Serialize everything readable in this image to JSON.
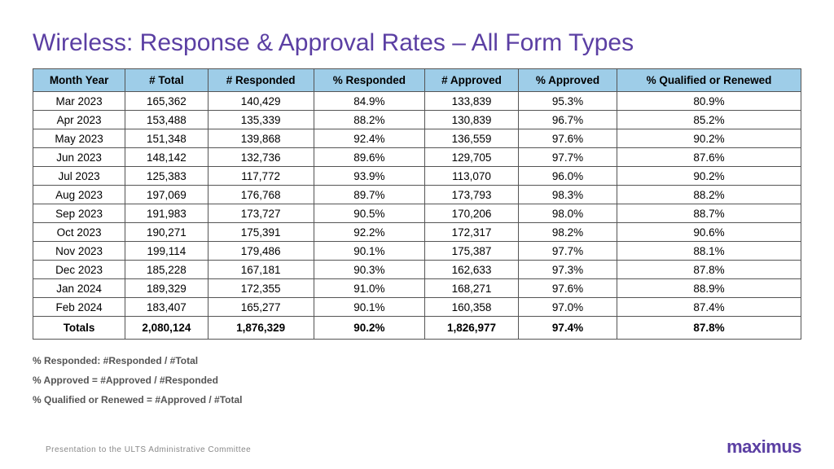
{
  "title": "Wireless: Response & Approval Rates – All Form Types",
  "title_color": "#5b3fa3",
  "table": {
    "header_bg": "#9ecde8",
    "columns": [
      "Month Year",
      "# Total",
      "# Responded",
      "% Responded",
      "# Approved",
      "% Approved",
      "% Qualified or Renewed"
    ],
    "rows": [
      [
        "Mar 2023",
        "165,362",
        "140,429",
        "84.9%",
        "133,839",
        "95.3%",
        "80.9%"
      ],
      [
        "Apr 2023",
        "153,488",
        "135,339",
        "88.2%",
        "130,839",
        "96.7%",
        "85.2%"
      ],
      [
        "May 2023",
        "151,348",
        "139,868",
        "92.4%",
        "136,559",
        "97.6%",
        "90.2%"
      ],
      [
        "Jun 2023",
        "148,142",
        "132,736",
        "89.6%",
        "129,705",
        "97.7%",
        "87.6%"
      ],
      [
        "Jul 2023",
        "125,383",
        "117,772",
        "93.9%",
        "113,070",
        "96.0%",
        "90.2%"
      ],
      [
        "Aug 2023",
        "197,069",
        "176,768",
        "89.7%",
        "173,793",
        "98.3%",
        "88.2%"
      ],
      [
        "Sep 2023",
        "191,983",
        "173,727",
        "90.5%",
        "170,206",
        "98.0%",
        "88.7%"
      ],
      [
        "Oct 2023",
        "190,271",
        "175,391",
        "92.2%",
        "172,317",
        "98.2%",
        "90.6%"
      ],
      [
        "Nov 2023",
        "199,114",
        "179,486",
        "90.1%",
        "175,387",
        "97.7%",
        "88.1%"
      ],
      [
        "Dec 2023",
        "185,228",
        "167,181",
        "90.3%",
        "162,633",
        "97.3%",
        "87.8%"
      ],
      [
        "Jan 2024",
        "189,329",
        "172,355",
        "91.0%",
        "168,271",
        "97.6%",
        "88.9%"
      ],
      [
        "Feb 2024",
        "183,407",
        "165,277",
        "90.1%",
        "160,358",
        "97.0%",
        "87.4%"
      ]
    ],
    "totals": [
      "Totals",
      "2,080,124",
      "1,876,329",
      "90.2%",
      "1,826,977",
      "97.4%",
      "87.8%"
    ]
  },
  "notes": [
    "% Responded: #Responded / #Total",
    "% Approved = #Approved / #Responded",
    "% Qualified or Renewed = #Approved / #Total"
  ],
  "footer": {
    "left": "Presentation to the ULTS Administrative Committee",
    "right": "maximus",
    "logo_color": "#5b3fa3"
  }
}
